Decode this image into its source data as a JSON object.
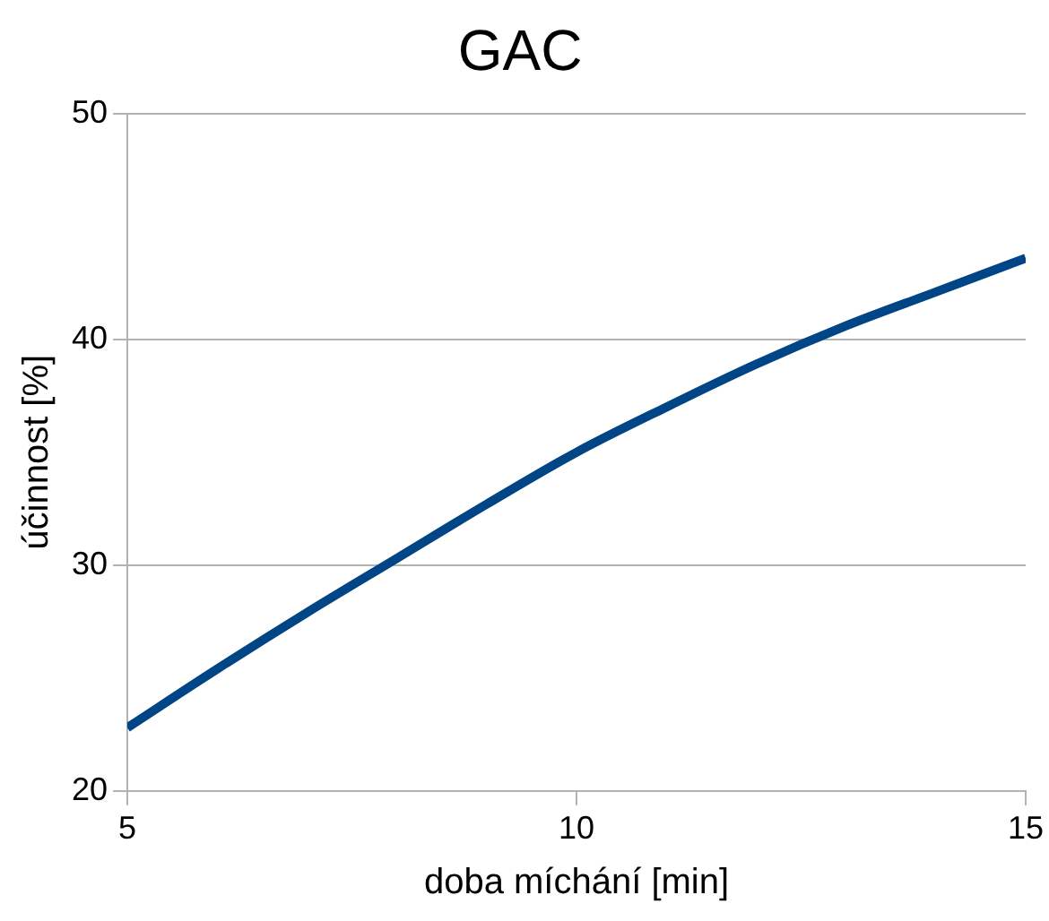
{
  "chart_data": {
    "type": "line",
    "title": "GAC",
    "xlabel": "doba míchání [min]",
    "ylabel": "účinnost [%]",
    "x": [
      5,
      6,
      7,
      8,
      9,
      10,
      11,
      12,
      13,
      14,
      15
    ],
    "series": [
      {
        "color": "#004586",
        "values": [
          22.8,
          25.4,
          27.9,
          30.3,
          32.7,
          35.0,
          37.0,
          38.9,
          40.6,
          42.1,
          43.6
        ]
      }
    ],
    "xlim": [
      5,
      15
    ],
    "xticks": [
      5,
      10,
      15
    ],
    "ylim": [
      20,
      50
    ],
    "yticks": [
      20,
      30,
      40,
      50
    ],
    "grid": "y",
    "legend": false,
    "marker": "none",
    "line_style": "solid"
  }
}
